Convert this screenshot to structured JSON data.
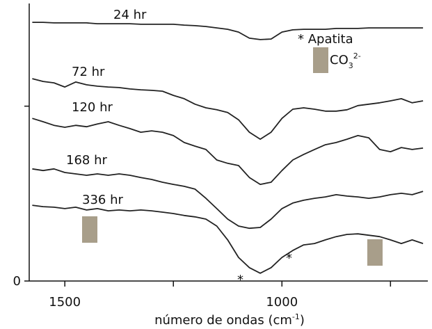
{
  "chart_data": {
    "type": "line",
    "x": [
      1575,
      1550,
      1525,
      1500,
      1475,
      1450,
      1425,
      1400,
      1375,
      1350,
      1325,
      1300,
      1275,
      1250,
      1225,
      1200,
      1175,
      1150,
      1125,
      1100,
      1075,
      1050,
      1025,
      1000,
      975,
      950,
      925,
      900,
      875,
      850,
      825,
      800,
      775,
      750,
      725,
      700,
      675
    ],
    "series": [
      {
        "name": "24 hr",
        "color": "#222222",
        "values": [
          9.32,
          9.32,
          9.3,
          9.3,
          9.3,
          9.3,
          9.27,
          9.27,
          9.27,
          9.27,
          9.25,
          9.25,
          9.25,
          9.25,
          9.22,
          9.2,
          9.17,
          9.12,
          9.07,
          8.97,
          8.75,
          8.7,
          8.72,
          8.97,
          9.05,
          9.07,
          9.07,
          9.07,
          9.1,
          9.1,
          9.1,
          9.12,
          9.12,
          9.12,
          9.12,
          9.12,
          9.12
        ]
      },
      {
        "name": "72 hr",
        "color": "#222222",
        "values": [
          7.29,
          7.19,
          7.14,
          6.99,
          7.17,
          7.07,
          7.02,
          6.99,
          6.97,
          6.92,
          6.89,
          6.87,
          6.84,
          6.69,
          6.57,
          6.37,
          6.24,
          6.17,
          6.07,
          5.81,
          5.36,
          5.11,
          5.36,
          5.86,
          6.19,
          6.24,
          6.19,
          6.12,
          6.12,
          6.17,
          6.32,
          6.37,
          6.42,
          6.49,
          6.57,
          6.42,
          6.49
        ]
      },
      {
        "name": "120 hr",
        "color": "#222222",
        "values": [
          5.86,
          5.74,
          5.61,
          5.54,
          5.61,
          5.56,
          5.66,
          5.74,
          5.61,
          5.49,
          5.36,
          5.41,
          5.36,
          5.24,
          4.99,
          4.86,
          4.74,
          4.36,
          4.24,
          4.16,
          3.73,
          3.48,
          3.56,
          3.98,
          4.36,
          4.56,
          4.74,
          4.91,
          4.99,
          5.11,
          5.24,
          5.16,
          4.74,
          4.66,
          4.81,
          4.74,
          4.79
        ]
      },
      {
        "name": "168 hr",
        "color": "#222222",
        "values": [
          4.04,
          3.98,
          4.04,
          3.91,
          3.86,
          3.81,
          3.86,
          3.81,
          3.86,
          3.81,
          3.73,
          3.66,
          3.56,
          3.48,
          3.41,
          3.31,
          2.98,
          2.61,
          2.23,
          1.98,
          1.9,
          1.93,
          2.23,
          2.61,
          2.81,
          2.91,
          2.98,
          3.03,
          3.11,
          3.06,
          3.03,
          2.98,
          3.03,
          3.11,
          3.16,
          3.11,
          3.23
        ]
      },
      {
        "name": "336 hr",
        "color": "#222222",
        "values": [
          2.73,
          2.68,
          2.66,
          2.61,
          2.66,
          2.56,
          2.61,
          2.53,
          2.56,
          2.53,
          2.56,
          2.53,
          2.48,
          2.43,
          2.36,
          2.31,
          2.23,
          1.98,
          1.48,
          0.85,
          0.48,
          0.28,
          0.48,
          0.85,
          1.1,
          1.3,
          1.35,
          1.48,
          1.6,
          1.68,
          1.7,
          1.65,
          1.6,
          1.48,
          1.35,
          1.48,
          1.35
        ]
      }
    ],
    "xlim": [
      1582,
      664
    ],
    "xticks": [
      1500,
      1000
    ],
    "minor_xticks": [
      1250,
      750
    ],
    "ylim": [
      0,
      10
    ],
    "yticks": [
      0
    ],
    "minor_yticks": [
      6.3
    ],
    "xlabel": {
      "text": "número de ondas (cm",
      "sup": "-1",
      "end": ")"
    },
    "apatite_label": "* Apatita",
    "carbonate_label": {
      "text": "CO",
      "sub": "3",
      "sup": "2-"
    },
    "asterisks": [
      "*",
      "*"
    ]
  }
}
